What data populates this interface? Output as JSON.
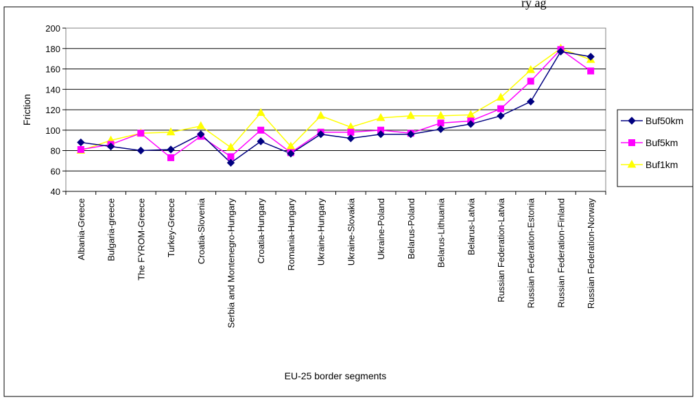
{
  "top_text": "ry ag",
  "chart_data": {
    "type": "line",
    "xlabel": "EU-25 border segments",
    "ylabel": "Friction",
    "ylim": [
      40,
      200
    ],
    "yticks": [
      40,
      60,
      80,
      100,
      120,
      140,
      160,
      180,
      200
    ],
    "grid": true,
    "legend_position": "right",
    "categories": [
      "Albania-Greece",
      "Bulgaria-greece",
      "The FYROM-Greece",
      "Turkey-Greece",
      "Croatia-Slovenia",
      "Serbia and Montenegro-Hungary",
      "Croatia-Hungary",
      "Romania-Hungary",
      "Ukraine-Hungary",
      "Ukraine-Slovakia",
      "Ukraine-Poland",
      "Belarus-Poland",
      "Belarus-Lithuania",
      "Belarus-Latvia",
      "Russian Federation-Latvia",
      "Russian Federation-Estonia",
      "Russian Federation-Finland",
      "Russian Federation-Norway"
    ],
    "series": [
      {
        "name": "Buf50km",
        "color": "#000080",
        "marker": "diamond",
        "values": [
          88,
          84,
          80,
          81,
          96,
          68,
          89,
          77,
          96,
          92,
          96,
          96,
          101,
          106,
          114,
          128,
          177,
          172
        ]
      },
      {
        "name": "Buf5km",
        "color": "#ff00ff",
        "marker": "square",
        "values": [
          81,
          86,
          97,
          73,
          94,
          74,
          100,
          78,
          98,
          98,
          100,
          97,
          107,
          109,
          121,
          148,
          179,
          158
        ]
      },
      {
        "name": "Buf1km",
        "color": "#ffff00",
        "marker": "triangle",
        "values": [
          80,
          90,
          97,
          98,
          104,
          83,
          117,
          84,
          114,
          103,
          112,
          114,
          114,
          115,
          132,
          159,
          180,
          169
        ]
      }
    ]
  }
}
